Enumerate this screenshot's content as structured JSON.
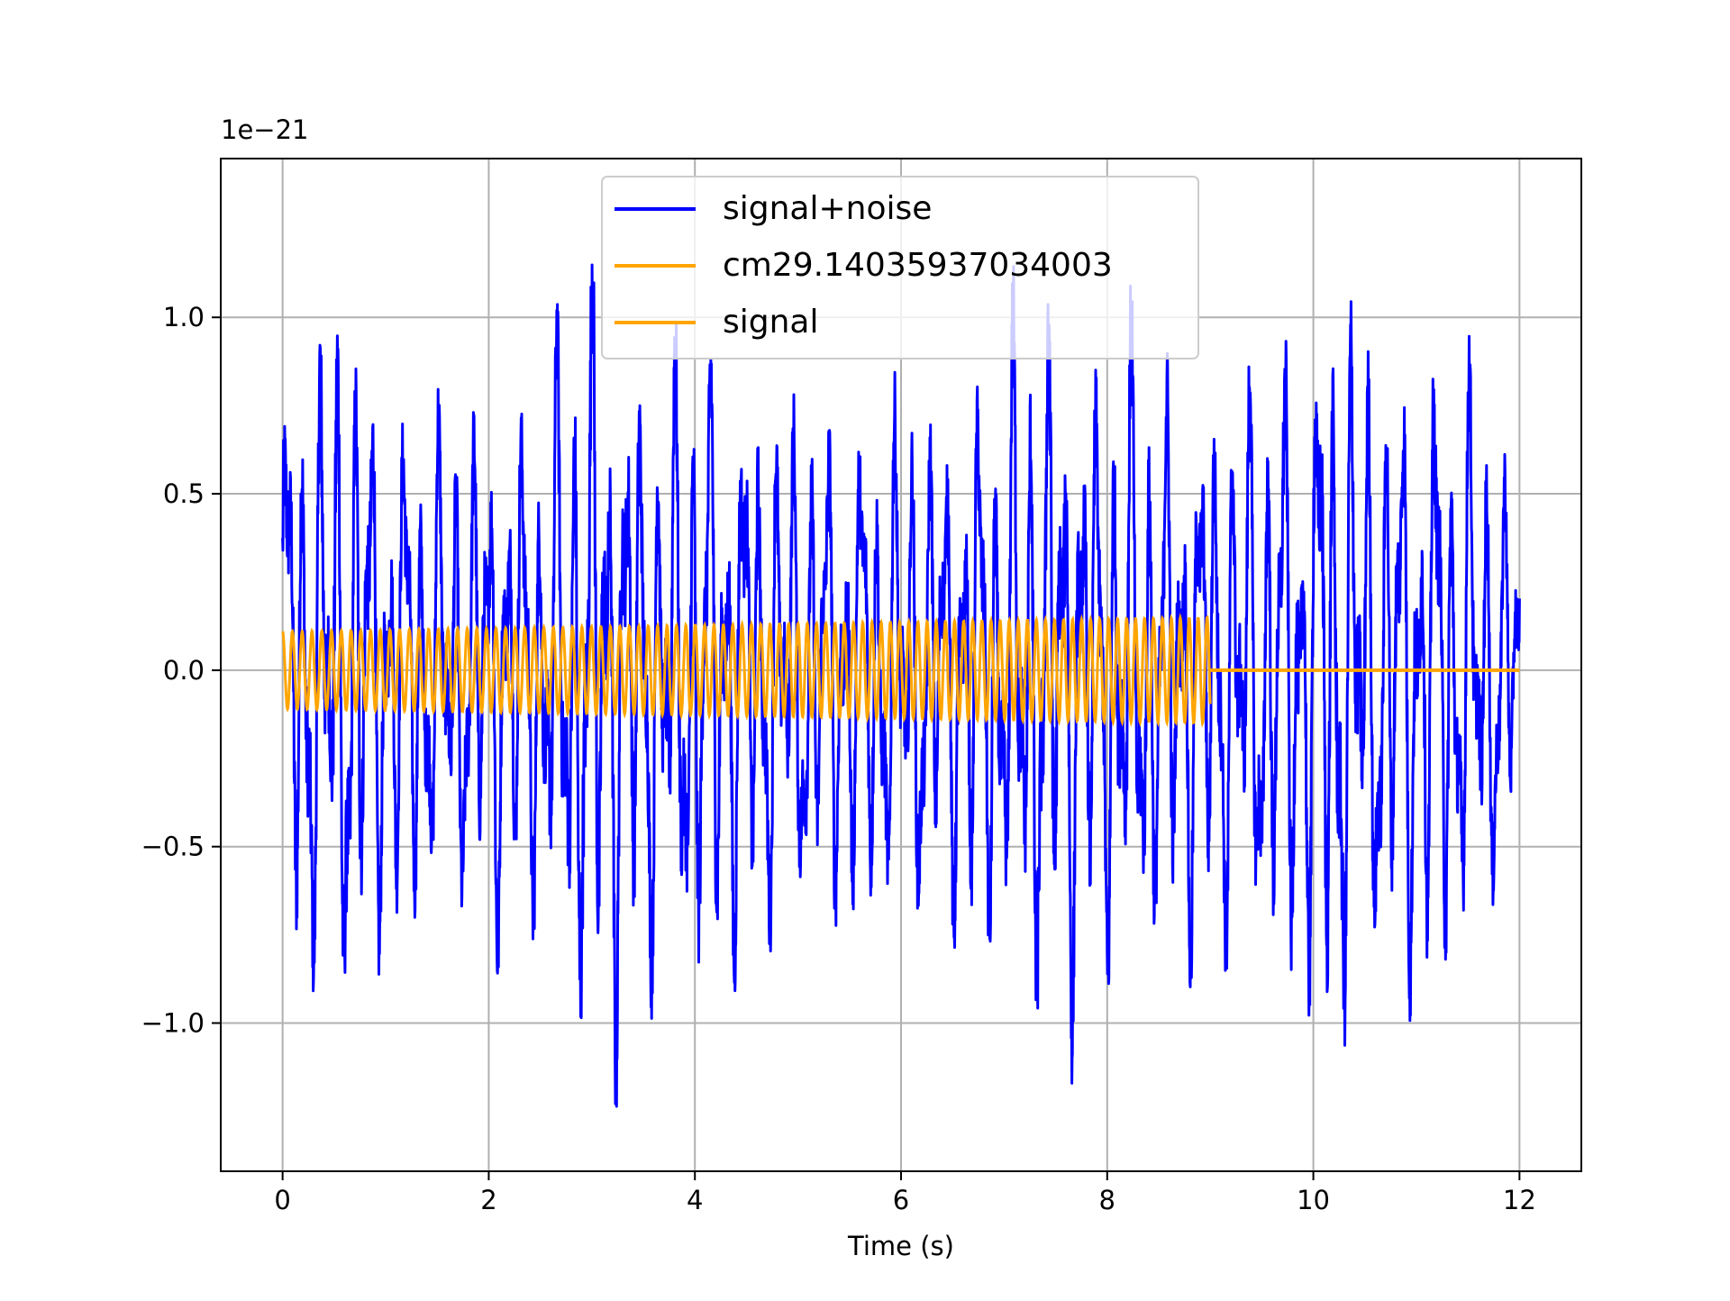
{
  "chart_data": {
    "type": "line",
    "title": "",
    "xlabel": "Time (s)",
    "ylabel": "",
    "offset_label": "1e−21",
    "xlim": [
      -0.6,
      12.6
    ],
    "ylim": [
      -1.42,
      1.45
    ],
    "xticks": [
      0,
      2,
      4,
      6,
      8,
      10,
      12
    ],
    "xtick_labels": [
      "0",
      "2",
      "4",
      "6",
      "8",
      "10",
      "12"
    ],
    "yticks": [
      -1.0,
      -0.5,
      0.0,
      0.5,
      1.0
    ],
    "ytick_labels": [
      "−1.0",
      "−0.5",
      "0.0",
      "0.5",
      "1.0"
    ],
    "grid": true,
    "legend_position": "upper-center",
    "series": [
      {
        "name": "signal+noise",
        "color": "#0000ff",
        "x_range": [
          0,
          12
        ],
        "envelope": {
          "x": [
            0,
            0.3,
            0.6,
            1.0,
            1.5,
            2.0,
            2.5,
            3.0,
            3.5,
            4.0,
            4.5,
            5.0,
            5.5,
            6.0,
            6.5,
            7.0,
            7.4,
            7.8,
            8.2,
            8.6,
            9.0,
            9.5,
            10.0,
            10.2,
            10.6,
            11.0,
            11.5,
            12.0
          ],
          "amplitude": [
            0.85,
            0.95,
            1.05,
            0.75,
            0.7,
            0.75,
            0.75,
            1.2,
            0.85,
            0.95,
            0.8,
            0.72,
            0.7,
            0.75,
            0.72,
            0.9,
            1.1,
            0.85,
            0.95,
            0.8,
            0.8,
            0.85,
            0.95,
            1.15,
            0.85,
            0.9,
            0.85,
            0.5
          ]
        }
      },
      {
        "name": "cm29.14035937034003",
        "color": "#ffa500",
        "x_range": [
          0,
          9.0
        ],
        "amplitude_start": 0.11,
        "amplitude_end": 0.15
      },
      {
        "name": "signal",
        "color": "#ffa500",
        "x_range": [
          9.0,
          12
        ],
        "value": 0.0
      }
    ]
  }
}
